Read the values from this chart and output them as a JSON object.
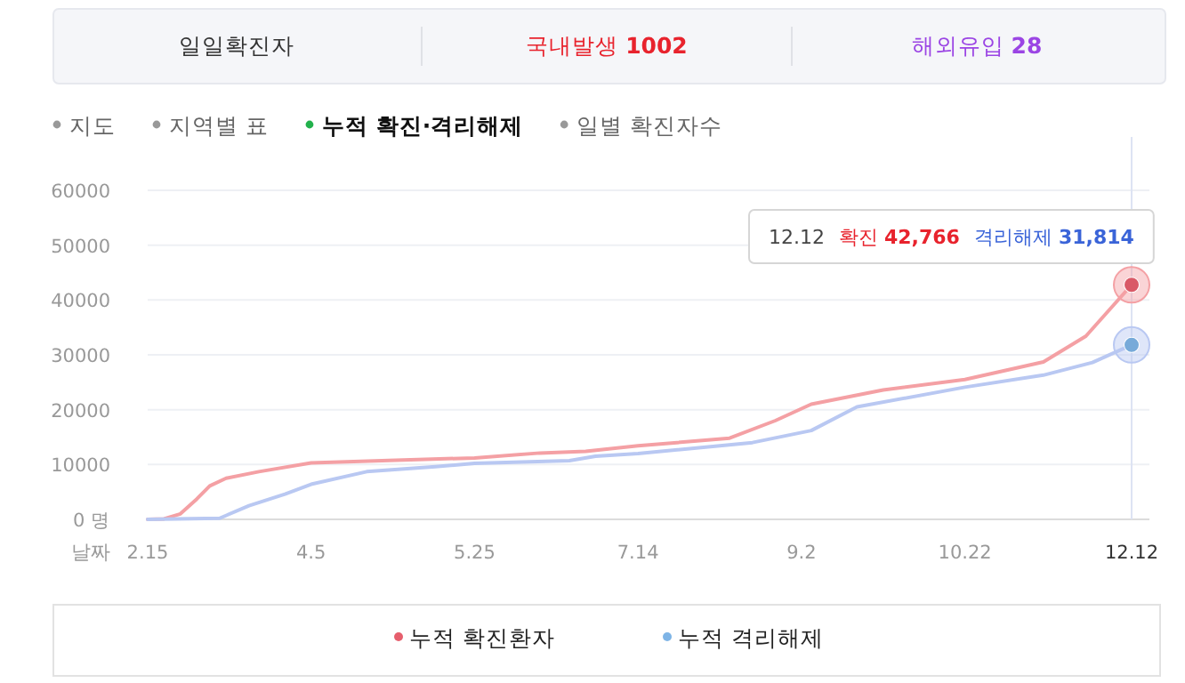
{
  "chart_data": {
    "type": "line",
    "xlabel": "날짜",
    "annotations": [
      "일일확진자",
      "국내발생 **1002**",
      "해외유입 **28**",
      "지도",
      "지역별 표",
      "누적 확진·격리해제",
      "일별 확진자수",
      "12.12",
      "확진 **42,766**",
      "격리해제 **31,814**"
    ],
    "xlim": [
      "--02-15",
      "--12-12"
    ],
    "xticks": [
      {
        "value": "--02-15",
        "label": "2.15"
      },
      {
        "value": "--04-05",
        "label": "4.5"
      },
      {
        "value": "--05-25",
        "label": "5.25"
      },
      {
        "value": "--07-14",
        "label": "7.14"
      },
      {
        "value": "--09-02",
        "label": "9.2"
      },
      {
        "value": "--10-22",
        "label": "10.22"
      },
      {
        "value": "--12-12",
        "label": "12.12"
      }
    ],
    "ylim": [
      0,
      60000
    ],
    "yticks": [
      {
        "value": 0,
        "label": "0 명"
      },
      10000,
      20000,
      30000,
      40000,
      50000,
      60000
    ],
    "grid": "y",
    "legend": "bottom",
    "ref_lines": [
      {
        "axis": "x",
        "value": "--12-12",
        "color": "#dde3f3"
      }
    ],
    "series": [
      {
        "name": "누적 확진환자",
        "color": "#f4a0a4",
        "x": [
          "--02-15",
          "--02-20",
          "--02-25",
          "--03-01",
          "--03-05",
          "--03-10",
          "--03-20",
          "--04-05",
          "--05-01",
          "--05-25",
          "--06-14",
          "--06-28",
          "--07-14",
          "--08-11",
          "--08-25",
          "--09-05",
          "--09-27",
          "--10-22",
          "--11-15",
          "--11-28",
          "--12-12"
        ],
        "values": [
          0,
          100,
          1000,
          3700,
          6100,
          7500,
          8700,
          10300,
          10800,
          11200,
          12100,
          12400,
          13400,
          14800,
          18000,
          21000,
          23600,
          25500,
          28700,
          33400,
          42766
        ]
      },
      {
        "name": "누적 격리해제",
        "color": "#b9c8f2",
        "x": [
          "--02-15",
          "--03-08",
          "--03-17",
          "--03-28",
          "--04-05",
          "--04-22",
          "--05-13",
          "--05-25",
          "--06-23",
          "--07-01",
          "--07-14",
          "--08-18",
          "--09-05",
          "--09-19",
          "--10-22",
          "--11-15",
          "--11-30",
          "--12-12"
        ],
        "values": [
          0,
          200,
          2500,
          4600,
          6400,
          8700,
          9600,
          10200,
          10700,
          11500,
          12000,
          14000,
          16200,
          20500,
          24100,
          26300,
          28600,
          31814
        ]
      }
    ]
  }
}
